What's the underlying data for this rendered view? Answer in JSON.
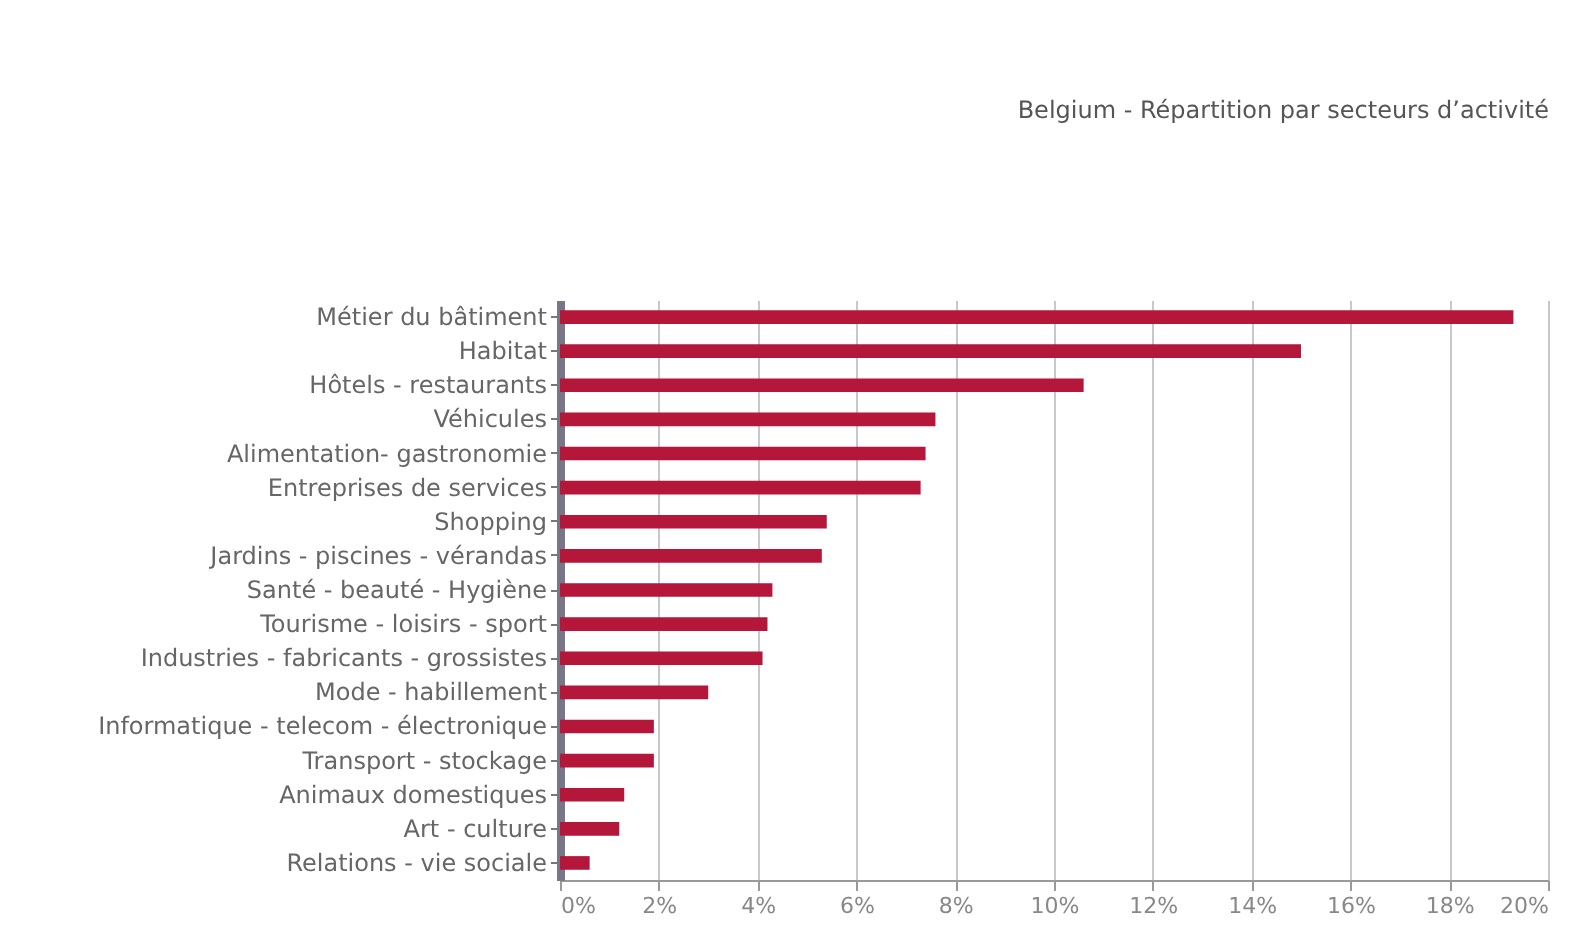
{
  "chart_data": {
    "type": "bar",
    "orientation": "horizontal",
    "title": "Belgium - Répartition par secteurs d’activité",
    "categories": [
      "Métier du bâtiment",
      "Habitat",
      "Hôtels - restaurants",
      "Véhicules",
      "Alimentation- gastronomie",
      "Entreprises de services",
      "Shopping",
      "Jardins - piscines - vérandas",
      "Santé - beauté - Hygiène",
      "Tourisme - loisirs -  sport",
      "Industries - fabricants -  grossistes",
      "Mode - habillement",
      "Informatique - telecom - électronique",
      "Transport - stockage",
      "Animaux domestiques",
      "Art - culture",
      "Relations - vie sociale"
    ],
    "values": [
      19.3,
      15.0,
      10.6,
      7.6,
      7.4,
      7.3,
      5.4,
      5.3,
      4.3,
      4.2,
      4.1,
      3.0,
      1.9,
      1.9,
      1.3,
      1.2,
      0.6
    ],
    "color": "#b5173b",
    "xlim": [
      0,
      20
    ],
    "xticks": [
      {
        "value": 0,
        "label": "0%"
      },
      {
        "value": 2,
        "label": "2%"
      },
      {
        "value": 4,
        "label": "4%"
      },
      {
        "value": 6,
        "label": "6%"
      },
      {
        "value": 8,
        "label": "8%"
      },
      {
        "value": 10,
        "label": "10%"
      },
      {
        "value": 12,
        "label": "12%"
      },
      {
        "value": 14,
        "label": "14%"
      },
      {
        "value": 16,
        "label": "16%"
      },
      {
        "value": 18,
        "label": "18%"
      },
      {
        "value": 20,
        "label": "20%"
      }
    ],
    "grid": "x"
  }
}
